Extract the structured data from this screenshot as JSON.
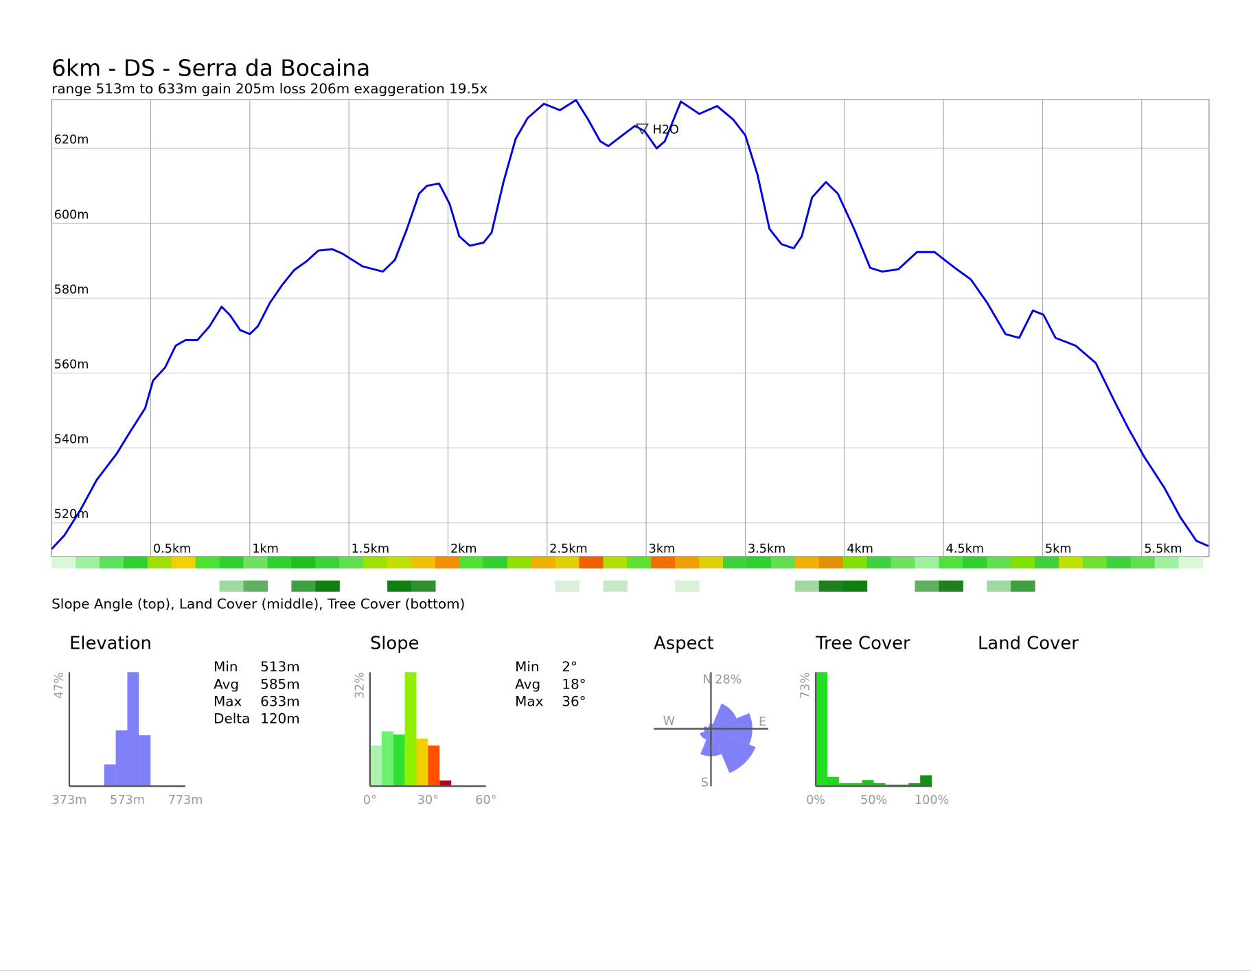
{
  "title": "6km - DS - Serra da Bocaina",
  "subtitle": "range 513m to 633m  gain 205m  loss 206m  exaggeration 19.5x",
  "strip_caption": "Slope Angle (top), Land Cover (middle), Tree Cover (bottom)",
  "land_cover": {
    "title": "Land Cover"
  },
  "elevation_stats": [
    [
      "Min",
      "513m"
    ],
    [
      "Avg",
      "585m"
    ],
    [
      "Max",
      "633m"
    ],
    [
      "Delta",
      "120m"
    ]
  ],
  "slope_stats": [
    [
      "Min",
      "2°"
    ],
    [
      "Avg",
      "18°"
    ],
    [
      "Max",
      "36°"
    ]
  ],
  "chart_data": [
    {
      "type": "line",
      "grid": true,
      "x": [
        0,
        0.065,
        0.146,
        0.228,
        0.329,
        0.39,
        0.472,
        0.512,
        0.573,
        0.626,
        0.675,
        0.736,
        0.797,
        0.858,
        0.898,
        0.951,
        1.0,
        1.041,
        1.102,
        1.163,
        1.224,
        1.285,
        1.346,
        1.415,
        1.467,
        1.569,
        1.671,
        1.732,
        1.793,
        1.854,
        1.894,
        1.955,
        2.008,
        2.057,
        2.11,
        2.179,
        2.22,
        2.28,
        2.341,
        2.402,
        2.484,
        2.565,
        2.646,
        2.707,
        2.768,
        2.809,
        2.87,
        2.943,
        2.992,
        3.053,
        3.094,
        3.175,
        3.268,
        3.358,
        3.439,
        3.5,
        3.561,
        3.622,
        3.683,
        3.744,
        3.785,
        3.837,
        3.907,
        3.967,
        4.049,
        4.13,
        4.191,
        4.272,
        4.366,
        4.455,
        4.557,
        4.638,
        4.72,
        4.813,
        4.882,
        4.951,
        5.004,
        5.065,
        5.167,
        5.268,
        5.37,
        5.431,
        5.512,
        5.614,
        5.695,
        5.776,
        5.837
      ],
      "series": [
        {
          "color": "#0000e0",
          "values": [
            513,
            516.7,
            523.5,
            531.5,
            538.5,
            543.8,
            550.6,
            558,
            561.5,
            567.3,
            568.8,
            568.8,
            572.5,
            577.7,
            575.6,
            571.5,
            570.4,
            572.5,
            578.8,
            583.5,
            587.5,
            589.8,
            592.7,
            593.1,
            591.9,
            588.5,
            587.1,
            590.2,
            598.5,
            607.9,
            610,
            610.6,
            605.2,
            596.5,
            594,
            594.8,
            597.5,
            611,
            622.5,
            628.1,
            631.9,
            630.2,
            632.9,
            627.7,
            621.9,
            620.6,
            623.1,
            626,
            624.6,
            620,
            621.9,
            632.5,
            629.2,
            631.3,
            627.7,
            623.5,
            613.1,
            598.5,
            594.4,
            593.3,
            596.5,
            606.9,
            611,
            607.9,
            598.5,
            588.1,
            587.1,
            587.7,
            592.3,
            592.3,
            588.1,
            585,
            578.8,
            570.4,
            569.4,
            576.7,
            575.6,
            569.4,
            567.3,
            562.7,
            551.7,
            545.4,
            537.7,
            529.4,
            521.5,
            515.2,
            513.8
          ]
        }
      ],
      "xlim": [
        0,
        5.84
      ],
      "xticks": [
        {
          "value": 0.5,
          "label": "0.5km"
        },
        {
          "value": 1,
          "label": "1km"
        },
        {
          "value": 1.5,
          "label": "1.5km"
        },
        {
          "value": 2,
          "label": "2km"
        },
        {
          "value": 2.5,
          "label": "2.5km"
        },
        {
          "value": 3,
          "label": "3km"
        },
        {
          "value": 3.5,
          "label": "3.5km"
        },
        {
          "value": 4,
          "label": "4km"
        },
        {
          "value": 4.5,
          "label": "4.5km"
        },
        {
          "value": 5,
          "label": "5km"
        },
        {
          "value": 5.5,
          "label": "5.5km"
        }
      ],
      "ylim": [
        511,
        633
      ],
      "yticks": [
        {
          "value": 520,
          "label": "520m"
        },
        {
          "value": 540,
          "label": "540m"
        },
        {
          "value": 560,
          "label": "560m"
        },
        {
          "value": 580,
          "label": "580m"
        },
        {
          "value": 600,
          "label": "600m"
        },
        {
          "value": 620,
          "label": "620m"
        }
      ],
      "annotations": [
        {
          "text": "H2O",
          "x": 2.98,
          "y": 625.2
        }
      ]
    },
    {
      "type": "strip",
      "colors": [
        "#d8f8d8",
        "#a0f0a0",
        "#60e060",
        "#30d030",
        "#a0e000",
        "#f0d000",
        "#50e030",
        "#30d030",
        "#70e060",
        "#30d030",
        "#20c020",
        "#40d040",
        "#60e050",
        "#a0e000",
        "#c0e000",
        "#f0c000",
        "#f09000",
        "#50e030",
        "#30d030",
        "#90e000",
        "#f0b000",
        "#e0d000",
        "#f06000",
        "#b0e000",
        "#60e030",
        "#f07000",
        "#f0a000",
        "#e0d000",
        "#40d040",
        "#30d030",
        "#60e050",
        "#f0b000",
        "#e09000",
        "#80e000",
        "#40d040",
        "#70e060",
        "#a0f0a0",
        "#50e040",
        "#30d030",
        "#60e050",
        "#80e000",
        "#40d040",
        "#c0e000",
        "#70e030",
        "#40d040",
        "#60e050",
        "#a0f0a0",
        "#d8f8d8"
      ]
    },
    {
      "type": "strip",
      "colors": [
        null,
        null,
        null,
        null,
        null,
        null,
        null,
        "#a0d8a0",
        "#60b060",
        null,
        "#40a040",
        "#108010",
        null,
        null,
        "#108010",
        "#309030",
        null,
        null,
        null,
        null,
        null,
        "#d8f0d8",
        null,
        "#c8e8c8",
        null,
        null,
        "#d8f0d8",
        null,
        null,
        null,
        null,
        "#a0d8a0",
        "#208020",
        "#108010",
        null,
        null,
        "#60b060",
        "#208020",
        null,
        "#a0d8a0",
        "#40a040",
        null,
        null,
        null,
        null,
        null,
        null,
        null
      ]
    },
    {
      "type": "histogram",
      "title": "Elevation",
      "bins": [
        493,
        533,
        573,
        613,
        653
      ],
      "values": [
        9,
        23,
        47,
        21
      ],
      "color": "#8080f8",
      "xlim": [
        373,
        773
      ],
      "xticks": [
        {
          "value": 373,
          "label": "373m"
        },
        {
          "value": 573,
          "label": "573m"
        },
        {
          "value": 773,
          "label": "773m"
        }
      ],
      "ylim": [
        0,
        47
      ],
      "yticks": [
        {
          "value": 47,
          "label": "47%"
        }
      ]
    },
    {
      "type": "histogram",
      "title": "Slope",
      "bins": [
        0,
        6,
        12,
        18,
        24,
        30,
        36,
        42
      ],
      "values": [
        11.4,
        15.4,
        14.5,
        32,
        13.4,
        11.4,
        1.6
      ],
      "colors": [
        "#b0f0b0",
        "#70f070",
        "#30e030",
        "#90f000",
        "#f0d000",
        "#ff5000",
        "#c00020"
      ],
      "xlim": [
        0,
        60
      ],
      "xticks": [
        {
          "value": 0,
          "label": "0°"
        },
        {
          "value": 30,
          "label": "30°"
        },
        {
          "value": 60,
          "label": "60°"
        }
      ],
      "ylim": [
        0,
        32
      ],
      "yticks": [
        {
          "value": 32,
          "label": "32%"
        }
      ]
    },
    {
      "type": "rose",
      "title": "Aspect",
      "categories": [
        "N",
        null,
        "E",
        null,
        "S",
        null,
        "W",
        null
      ],
      "values": [
        3,
        16,
        24,
        28,
        16,
        7,
        4,
        2
      ],
      "color": "#8080f8",
      "rlim": [
        0,
        28
      ],
      "rticks": [
        {
          "value": 28,
          "label": "28%"
        }
      ]
    },
    {
      "type": "histogram",
      "title": "Tree Cover",
      "bins": [
        0,
        10,
        20,
        30,
        40,
        50,
        60,
        70,
        80,
        90,
        100
      ],
      "values": [
        73,
        6,
        2,
        2,
        4,
        2,
        1,
        1,
        2,
        7
      ],
      "colors": [
        "#20e020",
        "#20d820",
        "#20d020",
        "#20c820",
        "#20c020",
        "#20b820",
        "#20b020",
        "#20a820",
        "#20a020",
        "#109010"
      ],
      "xlim": [
        0,
        100
      ],
      "xticks": [
        {
          "value": 0,
          "label": "0%"
        },
        {
          "value": 50,
          "label": "50%"
        },
        {
          "value": 100,
          "label": "100%"
        }
      ],
      "ylim": [
        0,
        73
      ],
      "yticks": [
        {
          "value": 73,
          "label": "73%"
        }
      ]
    }
  ]
}
